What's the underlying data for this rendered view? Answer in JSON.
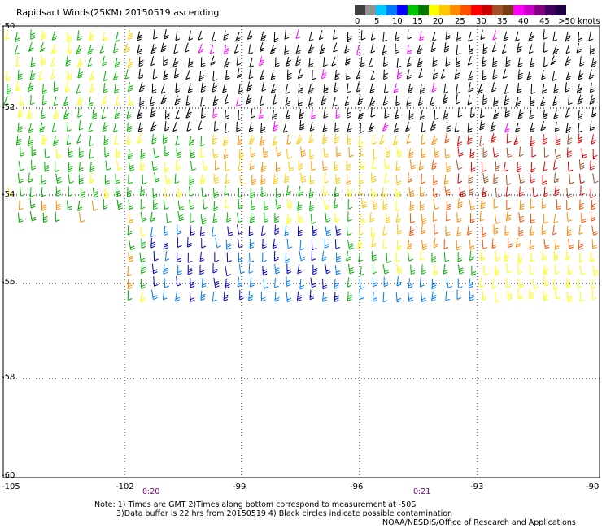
{
  "title": "Rapidsact Winds(25KM) 20150519 ascending",
  "legend": {
    "swatches": [
      {
        "color": "#404040"
      },
      {
        "color": "#909090"
      },
      {
        "color": "#00c8ff"
      },
      {
        "color": "#0078ff"
      },
      {
        "color": "#0000ff"
      },
      {
        "color": "#00c800"
      },
      {
        "color": "#007800"
      },
      {
        "color": "#ffff00"
      },
      {
        "color": "#ffc800"
      },
      {
        "color": "#ff8c00"
      },
      {
        "color": "#ff5000"
      },
      {
        "color": "#ff0000"
      },
      {
        "color": "#c80000"
      },
      {
        "color": "#a05028"
      },
      {
        "color": "#783c14"
      },
      {
        "color": "#ff00ff"
      },
      {
        "color": "#c800c8"
      },
      {
        "color": "#800080"
      },
      {
        "color": "#400060"
      },
      {
        "color": "#200040"
      }
    ],
    "labels": [
      "0",
      "5",
      "10",
      "15",
      "20",
      "25",
      "30",
      "35",
      "40",
      "45",
      ">50 knots"
    ]
  },
  "axes": {
    "lon_labels": [
      "-105",
      "-102",
      "-99",
      "-96",
      "-93",
      "-90"
    ],
    "lat_labels": [
      "-50",
      "-52",
      "-54",
      "-56",
      "-58",
      "-60"
    ]
  },
  "time_marks": [
    "0:20",
    "0:21"
  ],
  "notes": {
    "line1": "Note: 1) Times are GMT 2)Times along bottom correspond to measurement at -50S",
    "line2": "3)Data buffer is 22 hrs from 20150519 4) Black circles indicate possible contamination"
  },
  "credit": "NOAA/NESDIS/Office of Research and Applications",
  "colors": {
    "grid": "#000000",
    "time": "#800080"
  }
}
